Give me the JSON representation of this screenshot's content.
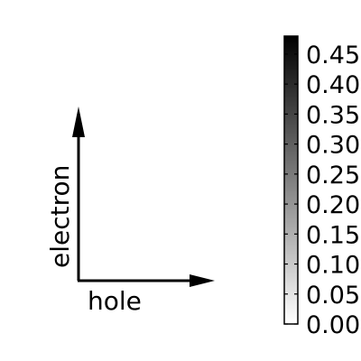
{
  "axes": {
    "x_label": "hole",
    "y_label": "electron"
  },
  "colorbar": {
    "min": 0.0,
    "max": 0.48,
    "color_low": "#ffffff",
    "color_high": "#000000",
    "ticks": [
      "0.00",
      "0.05",
      "0.10",
      "0.15",
      "0.20",
      "0.25",
      "0.30",
      "0.35",
      "0.40",
      "0.45"
    ]
  }
}
